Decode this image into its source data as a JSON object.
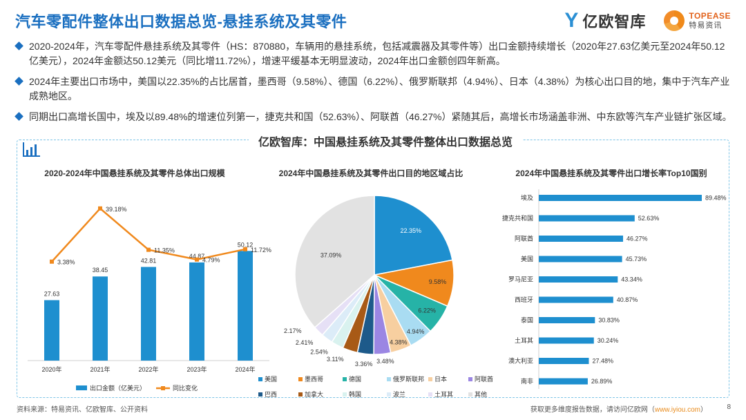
{
  "header": {
    "title": "汽车零配件整体出口数据总览-悬挂系统及其零件",
    "logo_yiou": "亿欧智库",
    "logo_topease_en": "TOPEASE",
    "logo_topease_cn": "特易资讯"
  },
  "bullets": [
    "2020-2024年，汽车零配件悬挂系统及其零件（HS：870880，车辆用的悬挂系统，包括减震器及其零件等）出口金额持续增长（2020年27.63亿美元至2024年50.12亿美元），2024年金额达50.12美元（同比增11.72%），增速平缓基本无明显波动，2024年出口金额创四年新高。",
    "2024年主要出口市场中，美国以22.35%的占比居首，墨西哥（9.58%）、德国（6.22%）、俄罗斯联邦（4.94%）、日本（4.38%）为核心出口目的地，集中于汽车产业成熟地区。",
    "同期出口高增长国中，埃及以89.48%的增速位列第一，捷克共和国（52.63%）、阿联酋（46.27%）紧随其后，高增长市场涵盖非洲、中东欧等汽车产业链扩张区域。"
  ],
  "panel_title": "亿欧智库：中国悬挂系统及其零件整体出口数据总览",
  "footer": {
    "source": "资料来源：特易资讯、亿欧智库、公开资料",
    "more_prefix": "获取更多维度报告数据，请访问亿欧网（",
    "more_url": "www.iyiou.com",
    "more_suffix": "）",
    "page": "8"
  },
  "colors": {
    "brand_blue": "#1a6fc0",
    "bar_blue": "#1e8fcf",
    "line_orange": "#f0891d",
    "panel_border": "#7cc4e6"
  },
  "chart_data": [
    {
      "type": "bar",
      "title": "2020-2024年中国悬挂系统及其零件总体出口规模",
      "categories": [
        "2020年",
        "2021年",
        "2022年",
        "2023年",
        "2024年"
      ],
      "series": [
        {
          "name": "出口金额（亿美元）",
          "type": "bar",
          "values": [
            27.63,
            38.45,
            42.81,
            44.87,
            50.12
          ],
          "labels": [
            "27.63",
            "38.45",
            "42.81",
            "44.87",
            "50.12"
          ]
        },
        {
          "name": "同比变化",
          "type": "line",
          "values": [
            3.38,
            39.18,
            11.35,
            4.79,
            11.72
          ],
          "labels": [
            "3.38%",
            "39.18%",
            "11.35%",
            "4.79%",
            "11.72%"
          ]
        }
      ]
    },
    {
      "type": "pie",
      "title": "2024年中国悬挂系统及其零件出口目的地区域占比",
      "slices": [
        {
          "name": "美国",
          "value": 22.35,
          "label": "22.35%",
          "color": "#1e8fcf"
        },
        {
          "name": "墨西哥",
          "value": 9.58,
          "label": "9.58%",
          "color": "#f0891d"
        },
        {
          "name": "德国",
          "value": 6.22,
          "label": "6.22%",
          "color": "#26b3a7"
        },
        {
          "name": "俄罗斯联邦",
          "value": 4.94,
          "label": "4.94%",
          "color": "#a9dcf2"
        },
        {
          "name": "日本",
          "value": 4.38,
          "label": "4.38%",
          "color": "#f7cfa0"
        },
        {
          "name": "阿联酋",
          "value": 3.48,
          "label": "3.48%",
          "color": "#9b86e3"
        },
        {
          "name": "巴西",
          "value": 3.36,
          "label": "3.36%",
          "color": "#1d5a8a"
        },
        {
          "name": "加拿大",
          "value": 3.11,
          "label": "3.11%",
          "color": "#a85a16"
        },
        {
          "name": "韩国",
          "value": 2.54,
          "label": "2.54%",
          "color": "#d9f2ef"
        },
        {
          "name": "波兰",
          "value": 2.41,
          "label": "2.41%",
          "color": "#dcecf8"
        },
        {
          "name": "土耳其",
          "value": 2.17,
          "label": "2.17%",
          "color": "#e6e0f6"
        },
        {
          "name": "其他",
          "value": 37.09,
          "label": "37.09%",
          "color": "#e2e2e2"
        }
      ]
    },
    {
      "type": "bar",
      "orientation": "horizontal",
      "title": "2024年中国悬挂系统及其零件出口增长率Top10国别",
      "categories": [
        "埃及",
        "捷克共和国",
        "阿联酋",
        "美国",
        "罗马尼亚",
        "西班牙",
        "泰国",
        "土耳其",
        "澳大利亚",
        "南非"
      ],
      "values": [
        89.48,
        52.63,
        46.27,
        45.73,
        43.34,
        40.87,
        30.83,
        30.24,
        27.48,
        26.89
      ],
      "labels": [
        "89.48%",
        "52.63%",
        "46.27%",
        "45.73%",
        "43.34%",
        "40.87%",
        "30.83%",
        "30.24%",
        "27.48%",
        "26.89%"
      ]
    }
  ]
}
